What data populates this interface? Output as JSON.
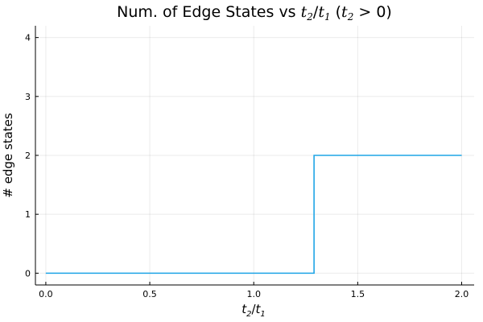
{
  "chart_data": {
    "type": "line",
    "title": {
      "prefix": "Num. of Edge States vs ",
      "math_num": "t",
      "math_num_sub": "2",
      "slash": "/",
      "math_den": "t",
      "math_den_sub": "1",
      "paren_open": " (",
      "math_cond": "t",
      "math_cond_sub": "2",
      "suffix": " > 0)"
    },
    "xlabel": {
      "num": "t",
      "num_sub": "2",
      "slash": "/",
      "den": "t",
      "den_sub": "1"
    },
    "ylabel": "# edge states",
    "xlim": [
      -0.05,
      2.06
    ],
    "ylim": [
      -0.2,
      4.2
    ],
    "xticks": [
      0.0,
      0.5,
      1.0,
      1.5,
      2.0
    ],
    "xtick_labels": [
      "0.0",
      "0.5",
      "1.0",
      "1.5",
      "2.0"
    ],
    "yticks": [
      0,
      1,
      2,
      3,
      4
    ],
    "ytick_labels": [
      "0",
      "1",
      "2",
      "3",
      "4"
    ],
    "grid": true,
    "series": [
      {
        "color": "#1fa5e6",
        "x": [
          0.0,
          1.29,
          1.29,
          2.0
        ],
        "y": [
          0,
          0,
          2,
          2
        ]
      }
    ]
  }
}
